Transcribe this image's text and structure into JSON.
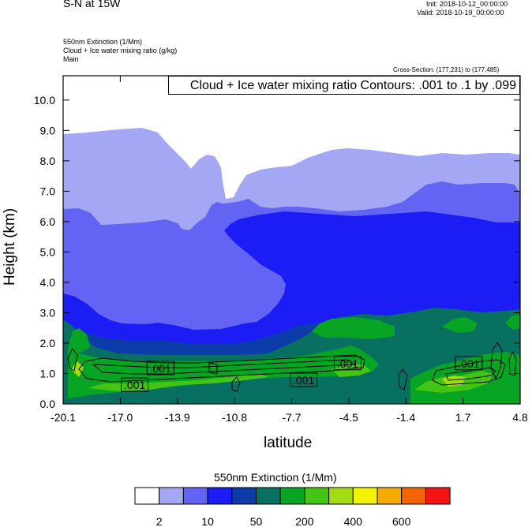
{
  "header": {
    "title": "S-N at 15W",
    "init": "Init: 2018-10-12_00:00:00",
    "valid": "Valid: 2018-10-19_00:00:00",
    "field_lines": [
      "550nm Extinction   (1/Mm)",
      "Cloud + Ice water mixing ratio   (g/kg)",
      "Main"
    ],
    "cross_section": "Cross-Section: (177,231) to (177,485)"
  },
  "chart_data": {
    "type": "heatmap",
    "title": "S-N at 15W",
    "xlabel": "latitude",
    "ylabel": "Height (km)",
    "xlim": [
      -20.1,
      4.8
    ],
    "ylim": [
      0.0,
      10.8
    ],
    "x_ticks": [
      "-20.1",
      "-17.0",
      "-13.9",
      "-10.8",
      "-7.7",
      "-4.5",
      "-1.4",
      "1.7",
      "4.8"
    ],
    "y_ticks": [
      "0.0",
      "1.0",
      "2.0",
      "3.0",
      "4.0",
      "5.0",
      "6.0",
      "7.0",
      "8.0",
      "9.0",
      "10.0"
    ],
    "contour_annotation": "Cloud + Ice water mixing ratio Contours: .001 to .1 by .099",
    "contour_labels": [
      {
        "text": ".001",
        "x": -14.8,
        "y": 1.17
      },
      {
        "text": ".001",
        "x": -16.2,
        "y": 0.62
      },
      {
        "text": ".001",
        "x": -7.0,
        "y": 0.78
      },
      {
        "text": ".001",
        "x": -4.6,
        "y": 1.33
      },
      {
        "text": ".001",
        "x": 2.0,
        "y": 1.33
      }
    ],
    "colorbar": {
      "title": "550nm Extinction  (1/Mm)",
      "tick_labels": [
        "2",
        "10",
        "50",
        "200",
        "400",
        "600"
      ],
      "colors": [
        "#ffffff",
        "#a4a8f4",
        "#6464f4",
        "#1c1cf4",
        "#0c3caa",
        "#087060",
        "#08a424",
        "#44c414",
        "#a4dc14",
        "#f4f400",
        "#f4ac00",
        "#f46400",
        "#f41414"
      ]
    }
  }
}
